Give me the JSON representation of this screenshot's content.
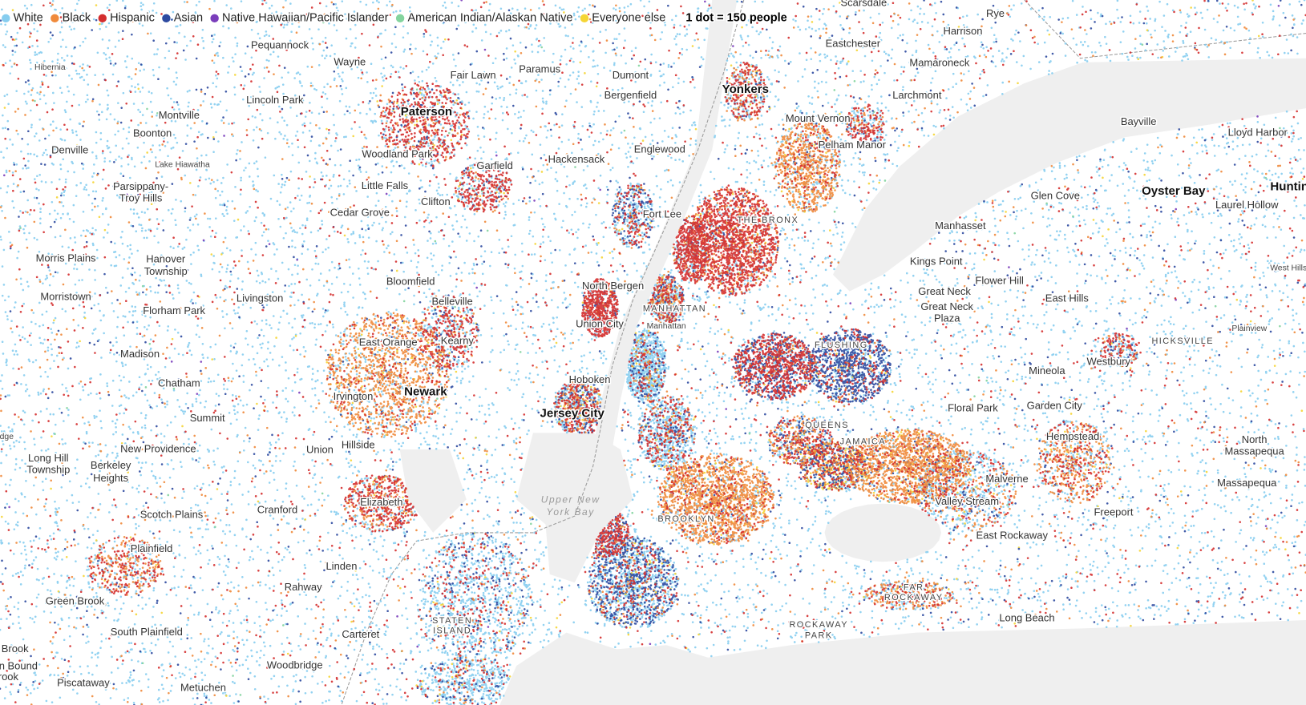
{
  "legend": {
    "items": [
      {
        "label": "White",
        "color": "#86cdef"
      },
      {
        "label": "Black",
        "color": "#f08a3b"
      },
      {
        "label": "Hispanic",
        "color": "#d42e2e"
      },
      {
        "label": "Asian",
        "color": "#2d4aa0"
      },
      {
        "label": "Native Hawaiian/Pacific Islander",
        "color": "#7a3dbb"
      },
      {
        "label": "American Indian/Alaskan Native",
        "color": "#83d49e"
      },
      {
        "label": "Everyone else",
        "color": "#f5d535"
      }
    ],
    "note": "1 dot = 150 people"
  },
  "places": [
    "Scarsdale",
    "Rye",
    "Harrison",
    "Eastchester",
    "Pequannock",
    "Wayne",
    "Mamaroneck",
    "Hibernia",
    "Paramus",
    "Fair Lawn",
    "Dumont",
    "Yonkers",
    "Bergenfield",
    "Larchmont",
    "Lincoln Park",
    "Paterson",
    "Montville",
    "Mount Vernon",
    "Bayville",
    "Lloyd Harbor",
    "Boonton",
    "Pelham Manor",
    "Englewood",
    "Denville",
    "Woodland Park",
    "Hackensack",
    "Lake Hiawatha",
    "Garfield",
    "Little Falls",
    "Parsippany-",
    "Oyster Bay",
    "Huntin",
    "Glen Cove",
    "Troy Hills",
    "Clifton",
    "Laurel Hollow",
    "Cedar Grove",
    "Fort Lee",
    "THE BRONX",
    "Manhasset",
    "Morris Plains",
    "Hanover",
    "Kings Point",
    "West Hills",
    "Township",
    "Flower Hill",
    "Bloomfield",
    "North Bergen",
    "Great Neck",
    "Morristown",
    "Livingston",
    "East Hills",
    "Belleville",
    "Great Neck",
    "MANHATTAN",
    "Florham Park",
    "Plaza",
    "Union City",
    "Manhattan",
    "Plainview",
    "HICKSVILLE",
    "Kearny",
    "East Orange",
    "FLUSHING",
    "Madison",
    "Westbury",
    "Mineola",
    "Hoboken",
    "Chatham",
    "Newark",
    "Irvington",
    "Garden City",
    "Floral Park",
    "Jersey City",
    "Summit",
    "QUEENS",
    "dge",
    "Hempstead",
    "North",
    "JAMAICA",
    "Hillside",
    "New Providence",
    "Union",
    "Massapequa",
    "Long Hill",
    "Berkeley",
    "Township",
    "Heights",
    "Malverne",
    "Massapequa",
    "Upper New",
    "Elizabeth",
    "Valley Stream",
    "Cranford",
    "Freeport",
    "York Bay",
    "Scotch Plains",
    "BROOKLYN",
    "East Rockaway",
    "Plainfield",
    "Linden",
    "FAR",
    "Rahway",
    "ROCKAWAY",
    "Green Brook",
    "Long Beach",
    "STATEN",
    "ROCKAWAY",
    "ISLAND",
    "South Plainfield",
    "Carteret",
    "PARK",
    "Brook",
    "Woodbridge",
    "n Bound",
    "rook",
    "Piscataway",
    "Metuchen"
  ]
}
